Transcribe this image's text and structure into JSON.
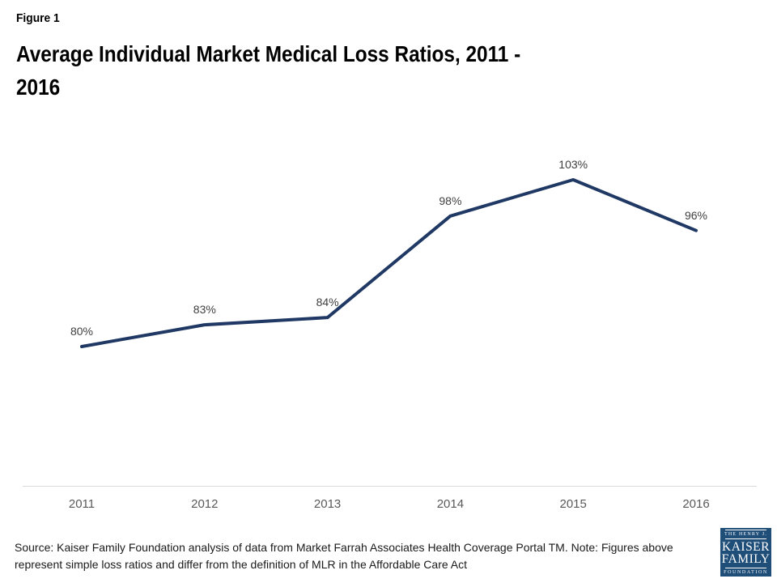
{
  "figure_label": "Figure 1",
  "title": {
    "lines": [
      "Average Individual Market Medical Loss Ratios, 2011 -",
      "2016"
    ]
  },
  "chart_data": {
    "type": "line",
    "title": "Average Individual Market Medical Loss Ratios, 2011 - 2016",
    "categories": [
      "2011",
      "2012",
      "2013",
      "2014",
      "2015",
      "2016"
    ],
    "series": [
      {
        "name": "Average individual market medical loss ratio",
        "values": [
          80,
          83,
          84,
          98,
          103,
          96
        ]
      }
    ],
    "point_labels": [
      "80%",
      "83%",
      "84%",
      "98%",
      "103%",
      "96%"
    ],
    "xlabel": "",
    "ylabel": "",
    "ylim": [
      60,
      115
    ],
    "grid": false,
    "legend": "none",
    "line_color": "#1F3864"
  },
  "source": {
    "lines": [
      "Source: Kaiser Family Foundation analysis of data from Market Farrah Associates Health Coverage Portal TM. Note: Figures above",
      "represent simple loss ratios and differ from the definition of MLR in the Affordable Care Act"
    ]
  },
  "logo": {
    "top_text": "THE HENRY J.",
    "name_line1": "KAISER",
    "name_line2": "FAMILY",
    "bottom_text": "FOUNDATION",
    "bg_color": "#1F4E79"
  },
  "colors": {
    "line": "#1F3864",
    "point_label": "#404040",
    "year_label": "#595959",
    "axis_line": "#d9d9d9",
    "background": "#ffffff"
  }
}
